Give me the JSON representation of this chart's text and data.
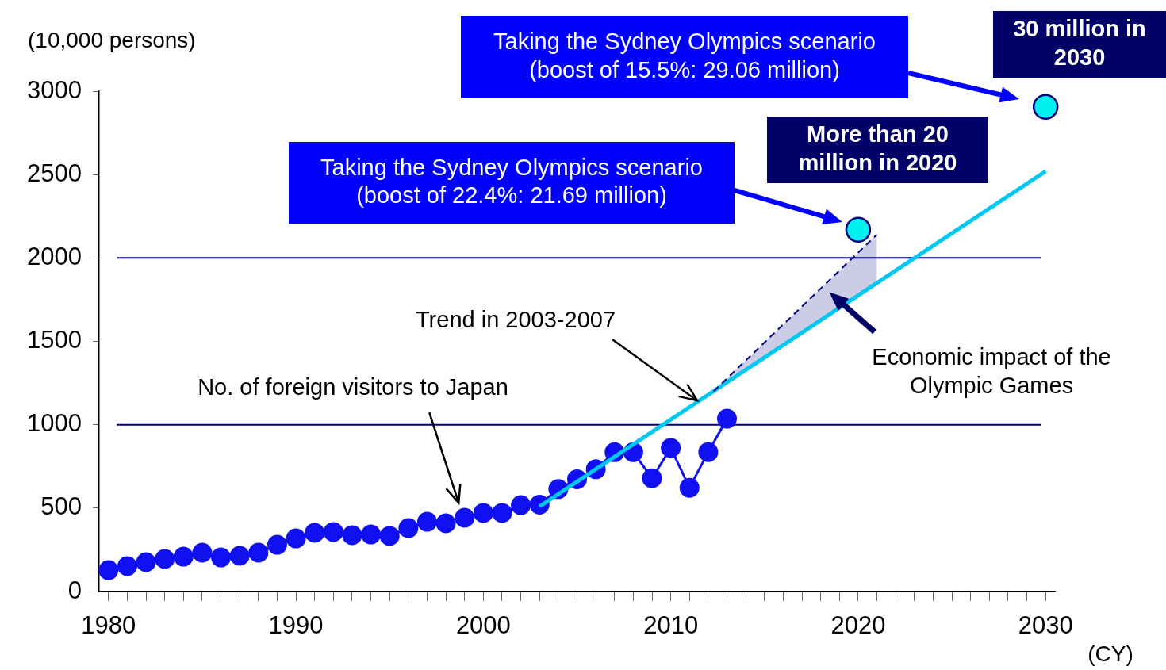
{
  "chart_data": {
    "type": "line",
    "ylabel": "(10,000 persons)",
    "xlabel": "(CY)",
    "xlim": [
      1979.5,
      2030.5
    ],
    "ylim": [
      0,
      3000
    ],
    "yticks": [
      0,
      500,
      1000,
      1500,
      2000,
      2500,
      3000
    ],
    "xticks": [
      1980,
      {
        "value": 1981,
        "label": null
      },
      {
        "value": 1982,
        "label": null
      },
      {
        "value": 1983,
        "label": null
      },
      {
        "value": 1984,
        "label": null
      },
      {
        "value": 1985,
        "label": null
      },
      {
        "value": 1986,
        "label": null
      },
      {
        "value": 1987,
        "label": null
      },
      {
        "value": 1988,
        "label": null
      },
      {
        "value": 1989,
        "label": null
      },
      1990,
      {
        "value": 1991,
        "label": null
      },
      {
        "value": 1992,
        "label": null
      },
      {
        "value": 1993,
        "label": null
      },
      {
        "value": 1994,
        "label": null
      },
      {
        "value": 1995,
        "label": null
      },
      {
        "value": 1996,
        "label": null
      },
      {
        "value": 1997,
        "label": null
      },
      {
        "value": 1998,
        "label": null
      },
      {
        "value": 1999,
        "label": null
      },
      2000,
      {
        "value": 2001,
        "label": null
      },
      {
        "value": 2002,
        "label": null
      },
      {
        "value": 2003,
        "label": null
      },
      {
        "value": 2004,
        "label": null
      },
      {
        "value": 2005,
        "label": null
      },
      {
        "value": 2006,
        "label": null
      },
      {
        "value": 2007,
        "label": null
      },
      {
        "value": 2008,
        "label": null
      },
      {
        "value": 2009,
        "label": null
      },
      2010,
      {
        "value": 2011,
        "label": null
      },
      {
        "value": 2012,
        "label": null
      },
      {
        "value": 2013,
        "label": null
      },
      {
        "value": 2014,
        "label": null
      },
      {
        "value": 2015,
        "label": null
      },
      {
        "value": 2016,
        "label": null
      },
      {
        "value": 2017,
        "label": null
      },
      {
        "value": 2018,
        "label": null
      },
      {
        "value": 2019,
        "label": null
      },
      2020,
      {
        "value": 2021,
        "label": null
      },
      {
        "value": 2022,
        "label": null
      },
      {
        "value": 2023,
        "label": null
      },
      {
        "value": 2024,
        "label": null
      },
      {
        "value": 2025,
        "label": null
      },
      {
        "value": 2026,
        "label": null
      },
      {
        "value": 2027,
        "label": null
      },
      {
        "value": 2028,
        "label": null
      },
      {
        "value": 2029,
        "label": null
      },
      2030
    ],
    "grid": false,
    "legend": false,
    "series": [
      {
        "type": "line",
        "color": "#000080",
        "line_style": "dashed",
        "marker": "none",
        "x": [
          2012.3,
          2021
        ],
        "values": [
          1202,
          2140
        ],
        "lower": [
          1202,
          1850
        ],
        "upper": [
          1202,
          2140
        ]
      },
      {
        "type": "line",
        "color": "#1010f0",
        "marker": "circle",
        "x": [
          1980,
          1981,
          1982,
          1983,
          1984,
          1985,
          1986,
          1987,
          1988,
          1989,
          1990,
          1991,
          1992,
          1993,
          1994,
          1995,
          1996,
          1997,
          1998,
          1999,
          2000,
          2001,
          2002,
          2003,
          2004,
          2005,
          2006,
          2007,
          2008,
          2009,
          2010,
          2011,
          2012,
          2013
        ],
        "values": [
          128,
          152,
          176,
          195,
          209,
          233,
          204,
          214,
          233,
          280,
          318,
          352,
          357,
          338,
          342,
          333,
          380,
          418,
          409,
          442,
          471,
          471,
          518,
          521,
          614,
          673,
          733,
          835,
          835,
          679,
          861,
          622,
          836,
          1036
        ]
      },
      {
        "type": "line",
        "color": "#00c8f0",
        "marker": "none",
        "x": [
          2003,
          2030
        ],
        "values": [
          510,
          2520
        ]
      },
      {
        "type": "scatter",
        "color": "#00f0f0",
        "marker": "circle",
        "x": [
          2020,
          2030
        ],
        "values": [
          2169,
          2906
        ]
      }
    ],
    "ref_lines": [
      {
        "axis": "y",
        "value": 1000,
        "color": "#000080"
      },
      {
        "axis": "y",
        "value": 2000,
        "color": "#000080"
      }
    ],
    "annotations": [
      "Taking the Sydney Olympics scenario (boost of 15.5%: 29.06 million)",
      "30 million in 2030",
      "More than 20 million in 2020",
      "Taking the Sydney Olympics scenario (boost of 22.4%: 21.69 million)",
      {
        "text": "Trend in 2003-2007",
        "x": 2011.4,
        "y": 1146
      },
      "No. of foreign visitors to Japan",
      "Economic impact of the Olympic Games"
    ]
  }
}
